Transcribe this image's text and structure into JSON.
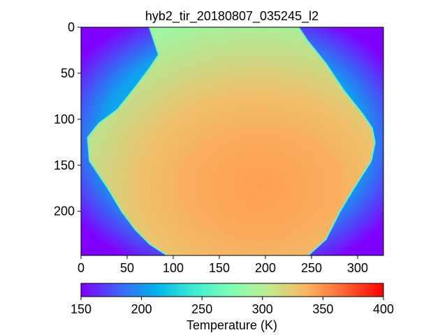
{
  "chart_data": {
    "type": "heatmap",
    "title": "hyb2_tir_20180807_035245_l2",
    "xlabel": "",
    "ylabel": "",
    "xlim": [
      0,
      328
    ],
    "ylim": [
      0,
      248
    ],
    "y_inverted": true,
    "x_ticks": [
      0,
      50,
      100,
      150,
      200,
      250,
      300
    ],
    "y_ticks": [
      0,
      50,
      100,
      150,
      200
    ],
    "colormap": "rainbow",
    "colorbar": {
      "label": "Temperature (K)",
      "range": [
        150,
        400
      ],
      "ticks": [
        150,
        200,
        250,
        300,
        350,
        400
      ]
    },
    "background_temperature_range_K": [
      150,
      230
    ],
    "asteroid_outline": [
      [
        75,
        0
      ],
      [
        235,
        0
      ],
      [
        245,
        15
      ],
      [
        265,
        40
      ],
      [
        285,
        70
      ],
      [
        305,
        95
      ],
      [
        315,
        110
      ],
      [
        318,
        125
      ],
      [
        314,
        145
      ],
      [
        295,
        175
      ],
      [
        280,
        200
      ],
      [
        265,
        230
      ],
      [
        245,
        248
      ],
      [
        95,
        248
      ],
      [
        75,
        235
      ],
      [
        60,
        220
      ],
      [
        45,
        200
      ],
      [
        30,
        175
      ],
      [
        10,
        145
      ],
      [
        8,
        120
      ],
      [
        20,
        105
      ],
      [
        40,
        90
      ],
      [
        60,
        65
      ],
      [
        75,
        45
      ],
      [
        85,
        30
      ]
    ],
    "asteroid_temperature_range_K": [
      290,
      350
    ],
    "hot_region_center": [
      195,
      170
    ],
    "hot_region_temperature_K": 340
  }
}
